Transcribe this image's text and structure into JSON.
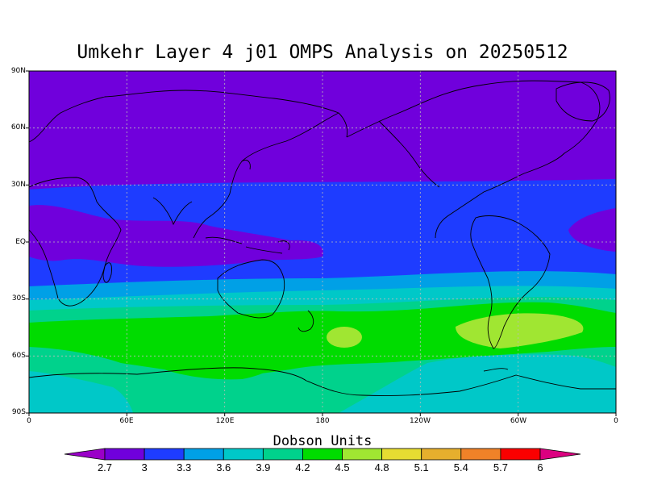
{
  "title": "Umkehr Layer 4 j01 OMPS Analysis on 20250512",
  "lat_labels": [
    "90N",
    "60N",
    "30N",
    "EQ",
    "30S",
    "60S",
    "90S"
  ],
  "lon_labels": [
    "0",
    "60E",
    "120E",
    "180",
    "120W",
    "60W",
    "0"
  ],
  "colorbar": {
    "title": "Dobson Units",
    "tick_labels": [
      "2.7",
      "3",
      "3.3",
      "3.6",
      "3.9",
      "4.2",
      "4.5",
      "4.8",
      "5.1",
      "5.4",
      "5.7",
      "6"
    ],
    "colors": [
      "#9a00c8",
      "#7000dc",
      "#1e3cff",
      "#00a0e6",
      "#00c8c8",
      "#00d28c",
      "#00dc00",
      "#a0e632",
      "#e6dc32",
      "#e6af2d",
      "#f08228",
      "#fa0000",
      "#dc0080"
    ]
  },
  "chart_data": {
    "type": "heatmap",
    "title": "Umkehr Layer 4 j01 OMPS Analysis on 20250512",
    "x_ticks": [
      "0",
      "60E",
      "120E",
      "180",
      "120W",
      "60W",
      "0"
    ],
    "y_ticks": [
      "90N",
      "60N",
      "30N",
      "EQ",
      "30S",
      "60S",
      "90S"
    ],
    "units": "Dobson Units",
    "levels": [
      2.7,
      3,
      3.3,
      3.6,
      3.9,
      4.2,
      4.5,
      4.8,
      5.1,
      5.4,
      5.7,
      6
    ],
    "xlim": [
      0,
      360
    ],
    "ylim": [
      -90,
      90
    ],
    "zonal_bands": [
      {
        "lat_range": [
          30,
          90
        ],
        "value_range": [
          2.7,
          3.0
        ]
      },
      {
        "lat_range": [
          -20,
          30
        ],
        "value_range": [
          3.0,
          3.3
        ]
      },
      {
        "lat_range": [
          -25,
          -20
        ],
        "value_range": [
          3.3,
          3.6
        ]
      },
      {
        "lat_range": [
          -33,
          -25
        ],
        "value_range": [
          3.6,
          3.9
        ]
      },
      {
        "lat_range": [
          -40,
          -33
        ],
        "value_range": [
          3.9,
          4.2
        ]
      },
      {
        "lat_range": [
          -68,
          -40
        ],
        "value_range": [
          4.2,
          4.5
        ]
      },
      {
        "lat_range": [
          -90,
          -68
        ],
        "value_range": [
          3.6,
          3.9
        ]
      }
    ],
    "grid": true
  }
}
